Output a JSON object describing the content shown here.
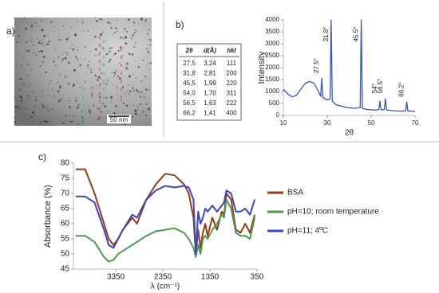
{
  "panels": {
    "a": "a)",
    "b": "b)",
    "c": "c)"
  },
  "image": {
    "scale_bar": "50 nm"
  },
  "table": {
    "header": [
      "2θ",
      "d(Å)",
      "hkl"
    ],
    "rows": [
      [
        "27,5",
        "3,24",
        "111"
      ],
      [
        "31,8",
        "2,81",
        "200"
      ],
      [
        "45,5",
        "1,99",
        "220"
      ],
      [
        "54,0",
        "1,70",
        "311"
      ],
      [
        "56,5",
        "1,63",
        "222"
      ],
      [
        "66,2",
        "1,41",
        "400"
      ]
    ]
  },
  "chart_data": [
    {
      "type": "line",
      "xlabel": "2θ",
      "ylabel": "Intensity",
      "color": "#3552c4",
      "x": [
        10,
        12,
        14,
        16,
        18,
        20,
        22,
        24,
        26,
        27,
        27.5,
        28,
        30,
        31.3,
        31.8,
        32.3,
        34,
        38,
        42,
        45,
        45.5,
        46,
        48,
        52,
        53.5,
        54,
        54.5,
        56,
        56.5,
        57,
        60,
        64,
        65.7,
        66.2,
        66.7,
        70
      ],
      "values": [
        1100,
        900,
        780,
        850,
        1100,
        1350,
        1420,
        1350,
        1000,
        800,
        1550,
        750,
        650,
        700,
        4000,
        600,
        450,
        350,
        300,
        320,
        4000,
        300,
        250,
        220,
        250,
        600,
        230,
        250,
        700,
        230,
        200,
        180,
        200,
        560,
        190,
        170
      ],
      "xlim": [
        10,
        70
      ],
      "xticks": [
        10,
        30,
        50,
        70
      ],
      "ylim": [
        0,
        4000
      ],
      "yticks": [
        0,
        500,
        1000,
        1500,
        2000,
        2500,
        3000,
        3500,
        4000
      ],
      "annotations": [
        {
          "text": "27.5°",
          "x": 27.5
        },
        {
          "text": "31.8°",
          "x": 31.8
        },
        {
          "text": "45.5°",
          "x": 45.5
        },
        {
          "text": "54°",
          "x": 54
        },
        {
          "text": "56.5°",
          "x": 56.5
        },
        {
          "text": "66.2°",
          "x": 66.2
        }
      ]
    },
    {
      "type": "line",
      "xlabel": "λ (cm⁻¹)",
      "ylabel": "Absorbance (%)",
      "x": [
        4200,
        4000,
        3800,
        3600,
        3500,
        3400,
        3300,
        3200,
        3000,
        2900,
        2700,
        2500,
        2300,
        2100,
        1900,
        1800,
        1700,
        1650,
        1600,
        1550,
        1500,
        1450,
        1400,
        1300,
        1200,
        1100,
        1050,
        1000,
        900,
        800,
        700,
        600,
        500,
        400
      ],
      "series": [
        {
          "name": "BSA",
          "color": "#9a3a16",
          "values": [
            78,
            78,
            70,
            60,
            55,
            53,
            55,
            58,
            62,
            60,
            68,
            73,
            76.5,
            76,
            73,
            70,
            62,
            50,
            58,
            52,
            57,
            60,
            56,
            62,
            58,
            64,
            63,
            70,
            68,
            58,
            57,
            60,
            57,
            63
          ]
        },
        {
          "name": "pH=10; room temperature",
          "color": "#4e9a4e",
          "values": [
            56,
            56,
            54,
            49,
            47.5,
            48,
            50,
            51,
            53,
            54,
            56,
            57.5,
            58,
            58.5,
            57,
            55,
            52,
            49,
            53,
            50,
            55,
            56,
            55,
            58,
            60,
            63,
            62,
            68,
            65,
            57,
            56,
            56,
            55,
            62
          ]
        },
        {
          "name": "pH=11; 4ºC",
          "color": "#3c44c0",
          "values": [
            69,
            69,
            67,
            58,
            53,
            52,
            55,
            58,
            63,
            62,
            68,
            71,
            72.5,
            72,
            72.5,
            72,
            68,
            50,
            64,
            60,
            62,
            65,
            64,
            66,
            64,
            66,
            67,
            71,
            70,
            64,
            64,
            65,
            63,
            68
          ]
        }
      ],
      "xlim": [
        4250,
        350
      ],
      "xticks": [
        3350,
        2350,
        1350,
        350
      ],
      "ylim": [
        45,
        80
      ],
      "yticks": [
        45,
        50,
        55,
        60,
        65,
        70,
        75,
        80
      ]
    }
  ]
}
